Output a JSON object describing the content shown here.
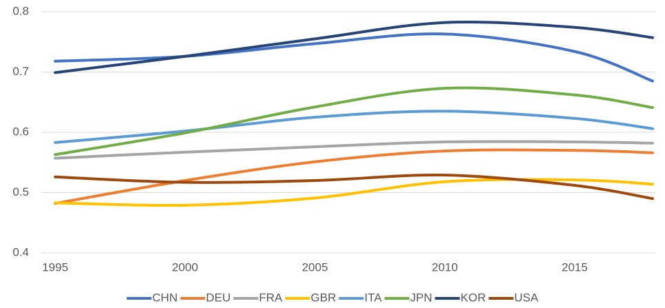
{
  "chart_data": {
    "type": "line",
    "x": [
      1995,
      2000,
      2005,
      2010,
      2015,
      2018
    ],
    "series": [
      {
        "name": "CHN",
        "color": "#4472c4",
        "values": [
          0.718,
          0.726,
          0.747,
          0.763,
          0.734,
          0.685
        ]
      },
      {
        "name": "DEU",
        "color": "#ed7d31",
        "values": [
          0.482,
          0.52,
          0.551,
          0.569,
          0.57,
          0.566
        ]
      },
      {
        "name": "FRA",
        "color": "#a5a5a5",
        "values": [
          0.557,
          0.567,
          0.576,
          0.584,
          0.584,
          0.582
        ]
      },
      {
        "name": "GBR",
        "color": "#ffc000",
        "values": [
          0.483,
          0.479,
          0.491,
          0.518,
          0.521,
          0.514
        ]
      },
      {
        "name": "ITA",
        "color": "#5b9bd5",
        "values": [
          0.583,
          0.602,
          0.625,
          0.635,
          0.623,
          0.606
        ]
      },
      {
        "name": "JPN",
        "color": "#70ad47",
        "values": [
          0.563,
          0.599,
          0.642,
          0.673,
          0.662,
          0.641
        ]
      },
      {
        "name": "KOR",
        "color": "#264478",
        "values": [
          0.699,
          0.726,
          0.755,
          0.782,
          0.774,
          0.757
        ]
      },
      {
        "name": "USA",
        "color": "#9e480e",
        "values": [
          0.526,
          0.517,
          0.52,
          0.529,
          0.512,
          0.49
        ]
      }
    ],
    "xlim": [
      1995,
      2018
    ],
    "xticks": [
      1995,
      2000,
      2005,
      2010,
      2015
    ],
    "ylim": [
      0.4,
      0.8
    ],
    "yticks": [
      0.4,
      0.5,
      0.6,
      0.7,
      0.8
    ],
    "grid": true,
    "legend": "bottom",
    "smooth": true
  }
}
